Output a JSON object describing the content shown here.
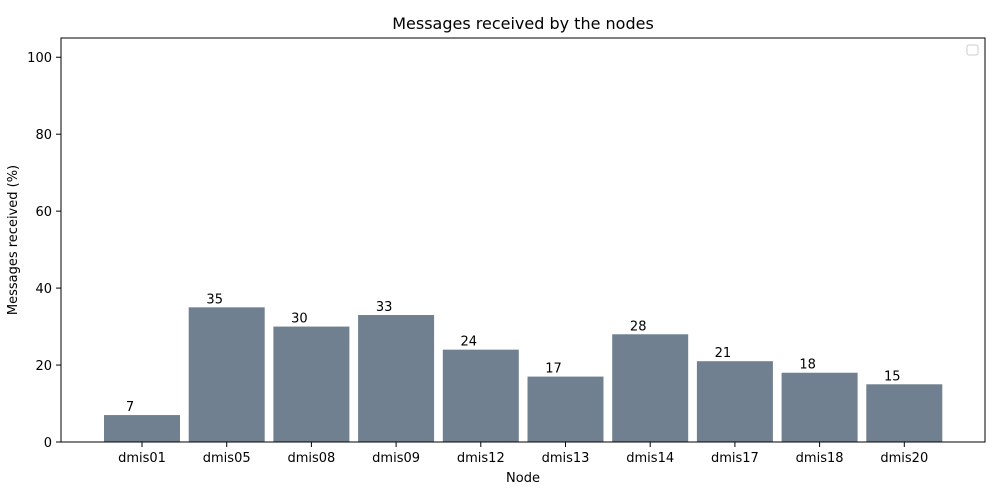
{
  "chart_data": {
    "type": "bar",
    "title": "Messages received by the nodes",
    "xlabel": "Node",
    "ylabel": "Messages received (%)",
    "categories": [
      "dmis01",
      "dmis05",
      "dmis08",
      "dmis09",
      "dmis12",
      "dmis13",
      "dmis14",
      "dmis17",
      "dmis18",
      "dmis20"
    ],
    "values": [
      7,
      35,
      30,
      33,
      24,
      17,
      28,
      21,
      18,
      15
    ],
    "data_labels": [
      "7",
      "35",
      "30",
      "33",
      "24",
      "17",
      "28",
      "21",
      "18",
      "15"
    ],
    "ylim": [
      0,
      105
    ],
    "yticks": [
      0,
      20,
      40,
      60,
      80,
      100
    ],
    "grid": false,
    "legend": {
      "placement": "top-right",
      "entries": []
    },
    "colors": {
      "bar": "#708090",
      "axis": "#000000",
      "background": "#ffffff"
    }
  }
}
